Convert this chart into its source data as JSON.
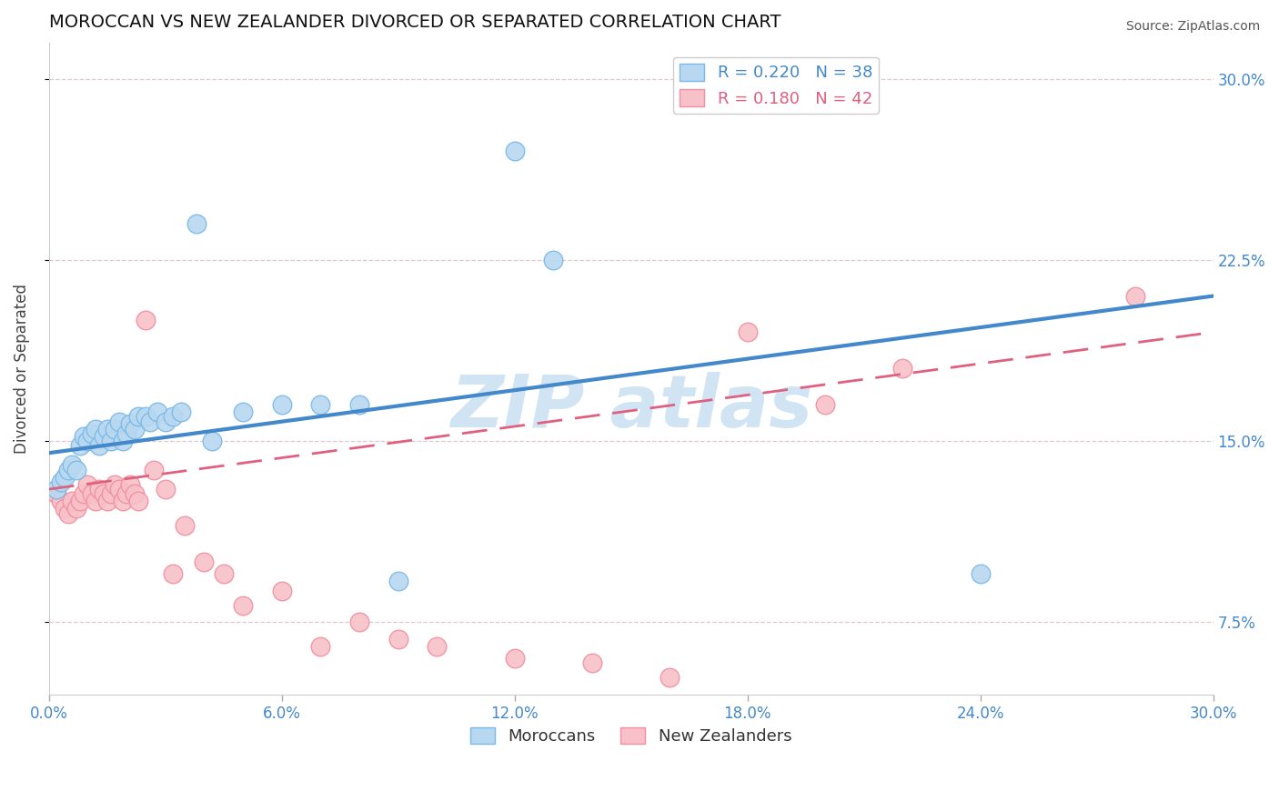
{
  "title": "MOROCCAN VS NEW ZEALANDER DIVORCED OR SEPARATED CORRELATION CHART",
  "source": "Source: ZipAtlas.com",
  "ylabel_label": "Divorced or Separated",
  "xlim": [
    0.0,
    0.3
  ],
  "ylim": [
    0.045,
    0.315
  ],
  "moroccan_R": 0.22,
  "moroccan_N": 38,
  "nz_R": 0.18,
  "nz_N": 42,
  "moroccan_color": "#7ab8e8",
  "moroccan_fill": "#b8d8f0",
  "nz_color": "#f090a0",
  "nz_fill": "#f8c0c8",
  "blue_line_color": "#4488cc",
  "pink_line_color": "#e06080",
  "watermark_color": "#d0e4f4",
  "background_color": "#ffffff",
  "moroccan_x": [
    0.002,
    0.003,
    0.004,
    0.005,
    0.006,
    0.007,
    0.008,
    0.009,
    0.01,
    0.011,
    0.012,
    0.013,
    0.014,
    0.015,
    0.016,
    0.017,
    0.018,
    0.019,
    0.02,
    0.021,
    0.022,
    0.023,
    0.025,
    0.026,
    0.028,
    0.03,
    0.032,
    0.034,
    0.038,
    0.042,
    0.05,
    0.06,
    0.07,
    0.09,
    0.12,
    0.24,
    0.13,
    0.08
  ],
  "moroccan_y": [
    0.13,
    0.133,
    0.135,
    0.138,
    0.14,
    0.138,
    0.148,
    0.152,
    0.15,
    0.153,
    0.155,
    0.148,
    0.152,
    0.155,
    0.15,
    0.155,
    0.158,
    0.15,
    0.153,
    0.157,
    0.155,
    0.16,
    0.16,
    0.158,
    0.162,
    0.158,
    0.16,
    0.162,
    0.24,
    0.15,
    0.162,
    0.165,
    0.165,
    0.092,
    0.27,
    0.095,
    0.225,
    0.165
  ],
  "nz_x": [
    0.002,
    0.003,
    0.004,
    0.005,
    0.006,
    0.007,
    0.008,
    0.009,
    0.01,
    0.011,
    0.012,
    0.013,
    0.014,
    0.015,
    0.016,
    0.017,
    0.018,
    0.019,
    0.02,
    0.021,
    0.022,
    0.023,
    0.025,
    0.027,
    0.03,
    0.032,
    0.035,
    0.04,
    0.045,
    0.05,
    0.06,
    0.07,
    0.08,
    0.09,
    0.1,
    0.12,
    0.14,
    0.16,
    0.18,
    0.2,
    0.22,
    0.28
  ],
  "nz_y": [
    0.128,
    0.125,
    0.122,
    0.12,
    0.125,
    0.122,
    0.125,
    0.128,
    0.132,
    0.128,
    0.125,
    0.13,
    0.128,
    0.125,
    0.128,
    0.132,
    0.13,
    0.125,
    0.128,
    0.132,
    0.128,
    0.125,
    0.2,
    0.138,
    0.13,
    0.095,
    0.115,
    0.1,
    0.095,
    0.082,
    0.088,
    0.065,
    0.075,
    0.068,
    0.065,
    0.06,
    0.058,
    0.052,
    0.195,
    0.165,
    0.18,
    0.21
  ],
  "blue_line_y0": 0.145,
  "blue_line_y1": 0.21,
  "pink_line_y0": 0.13,
  "pink_line_y1": 0.195,
  "x_ticks": [
    0.0,
    0.06,
    0.12,
    0.18,
    0.24,
    0.3
  ],
  "y_ticks": [
    0.075,
    0.15,
    0.225,
    0.3
  ]
}
